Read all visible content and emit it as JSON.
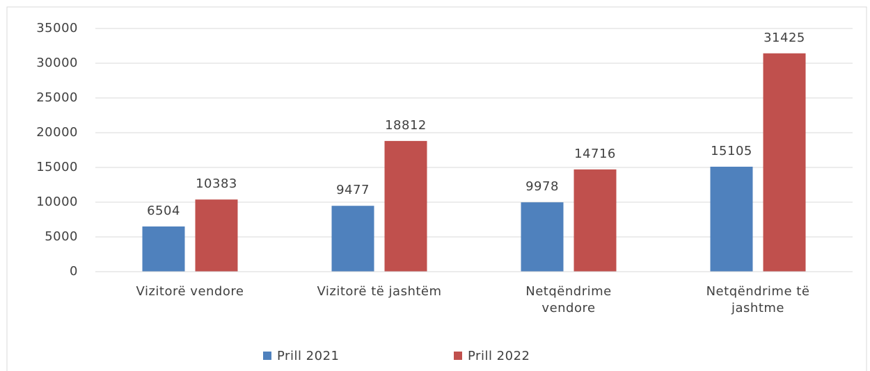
{
  "chart_data": {
    "type": "bar",
    "categories": [
      "Vizitorë vendore",
      "Vizitorë të jashtëm",
      "Netqëndrime vendore",
      "Netqëndrime të jashtme"
    ],
    "series": [
      {
        "name": "Prill 2021",
        "color": "#4f81bd",
        "values": [
          6504,
          9477,
          9978,
          15105
        ]
      },
      {
        "name": "Prill 2022",
        "color": "#c0504d",
        "values": [
          10383,
          18812,
          14716,
          31425
        ]
      }
    ],
    "ylim": [
      0,
      35000
    ],
    "yticks": [
      0,
      5000,
      10000,
      15000,
      20000,
      25000,
      30000,
      35000
    ],
    "grid": true,
    "legend": "bottom"
  }
}
